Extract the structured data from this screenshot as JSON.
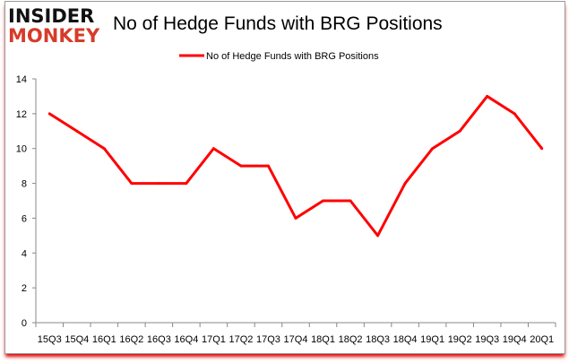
{
  "logo": {
    "line1": "INSIDER",
    "line2": "MONKEY",
    "colors": {
      "line1": "#111111",
      "line2": "#d63b2a"
    }
  },
  "chart_data": {
    "type": "line",
    "title": "No of Hedge Funds with BRG Positions",
    "categories": [
      "15Q3",
      "15Q4",
      "16Q1",
      "16Q2",
      "16Q3",
      "16Q4",
      "17Q1",
      "17Q2",
      "17Q3",
      "17Q4",
      "18Q1",
      "18Q2",
      "18Q3",
      "18Q4",
      "19Q1",
      "19Q2",
      "19Q3",
      "19Q4",
      "20Q1"
    ],
    "series": [
      {
        "name": "No of Hedge Funds with BRG Positions",
        "color": "#ff0000",
        "values": [
          12,
          11,
          10,
          8,
          8,
          8,
          10,
          9,
          9,
          6,
          7,
          7,
          5,
          8,
          10,
          11,
          13,
          12,
          10
        ]
      }
    ],
    "ylim": [
      0,
      14
    ],
    "yticks": [
      0,
      2,
      4,
      6,
      8,
      10,
      12,
      14
    ],
    "xlabel": "",
    "ylabel": "",
    "grid": false,
    "legend": "top-center"
  }
}
